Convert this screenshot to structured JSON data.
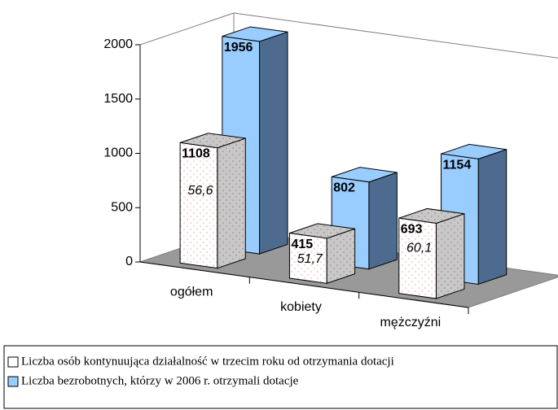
{
  "chart_data": {
    "type": "bar3d",
    "categories": [
      "ogółem",
      "kobiety",
      "mężczyźni"
    ],
    "series": [
      {
        "name": "Liczba osób kontynuująca działalność w trzecim roku od otrzymania dotacji",
        "color": "#ffffff",
        "values": [
          1108,
          415,
          693
        ],
        "annotations": [
          "56,6",
          "51,7",
          "60,1"
        ]
      },
      {
        "name": "Liczba bezrobotnych, którzy w 2006 r. otrzymali dotacje",
        "color": "#99ccff",
        "values": [
          1956,
          802,
          1154
        ]
      }
    ],
    "ylim": [
      0,
      2000
    ],
    "yticks": [
      0,
      500,
      1000,
      1500,
      2000
    ],
    "legend": "bottom"
  }
}
